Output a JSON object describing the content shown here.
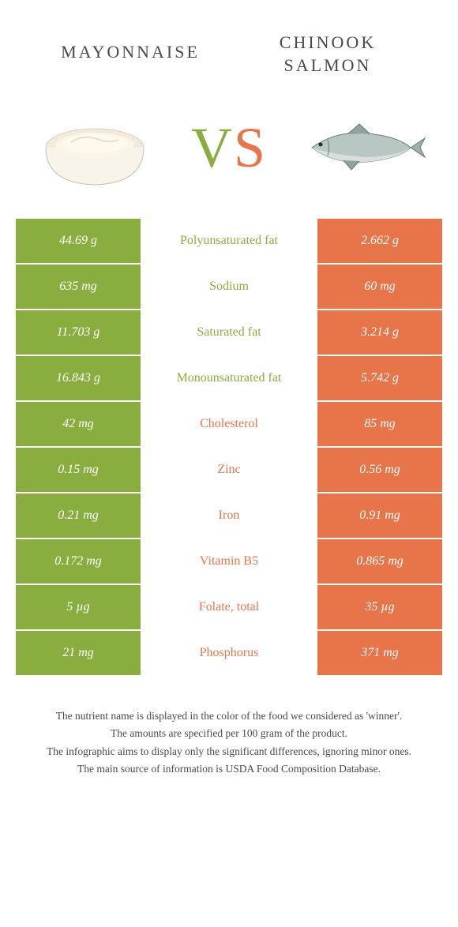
{
  "header": {
    "left_title": "MAYONNAISE",
    "right_title_line1": "CHINOOK",
    "right_title_line2": "SALMON"
  },
  "vs": {
    "v": "V",
    "s": "S"
  },
  "colors": {
    "green": "#8aad3f",
    "orange": "#e8754a",
    "text": "#4a4a4a",
    "bg": "#ffffff"
  },
  "rows": [
    {
      "left": "44.69 g",
      "label": "Polyunsaturated fat",
      "right": "2.662 g",
      "winner": "green"
    },
    {
      "left": "635 mg",
      "label": "Sodium",
      "right": "60 mg",
      "winner": "green"
    },
    {
      "left": "11.703 g",
      "label": "Saturated fat",
      "right": "3.214 g",
      "winner": "green"
    },
    {
      "left": "16.843 g",
      "label": "Monounsaturated fat",
      "right": "5.742 g",
      "winner": "green"
    },
    {
      "left": "42 mg",
      "label": "Cholesterol",
      "right": "85 mg",
      "winner": "orange"
    },
    {
      "left": "0.15 mg",
      "label": "Zinc",
      "right": "0.56 mg",
      "winner": "orange"
    },
    {
      "left": "0.21 mg",
      "label": "Iron",
      "right": "0.91 mg",
      "winner": "orange"
    },
    {
      "left": "0.172 mg",
      "label": "Vitamin B5",
      "right": "0.865 mg",
      "winner": "orange"
    },
    {
      "left": "5 µg",
      "label": "Folate, total",
      "right": "35 µg",
      "winner": "orange"
    },
    {
      "left": "21 mg",
      "label": "Phosphorus",
      "right": "371 mg",
      "winner": "orange"
    }
  ],
  "footer": {
    "l1": "The nutrient name is displayed in the color of the food we considered as 'winner'.",
    "l2": "The amounts are specified per 100 gram of the product.",
    "l3": "The infographic aims to display only the significant differences, ignoring minor ones.",
    "l4": "The main source of information is USDA Food Composition Database."
  }
}
